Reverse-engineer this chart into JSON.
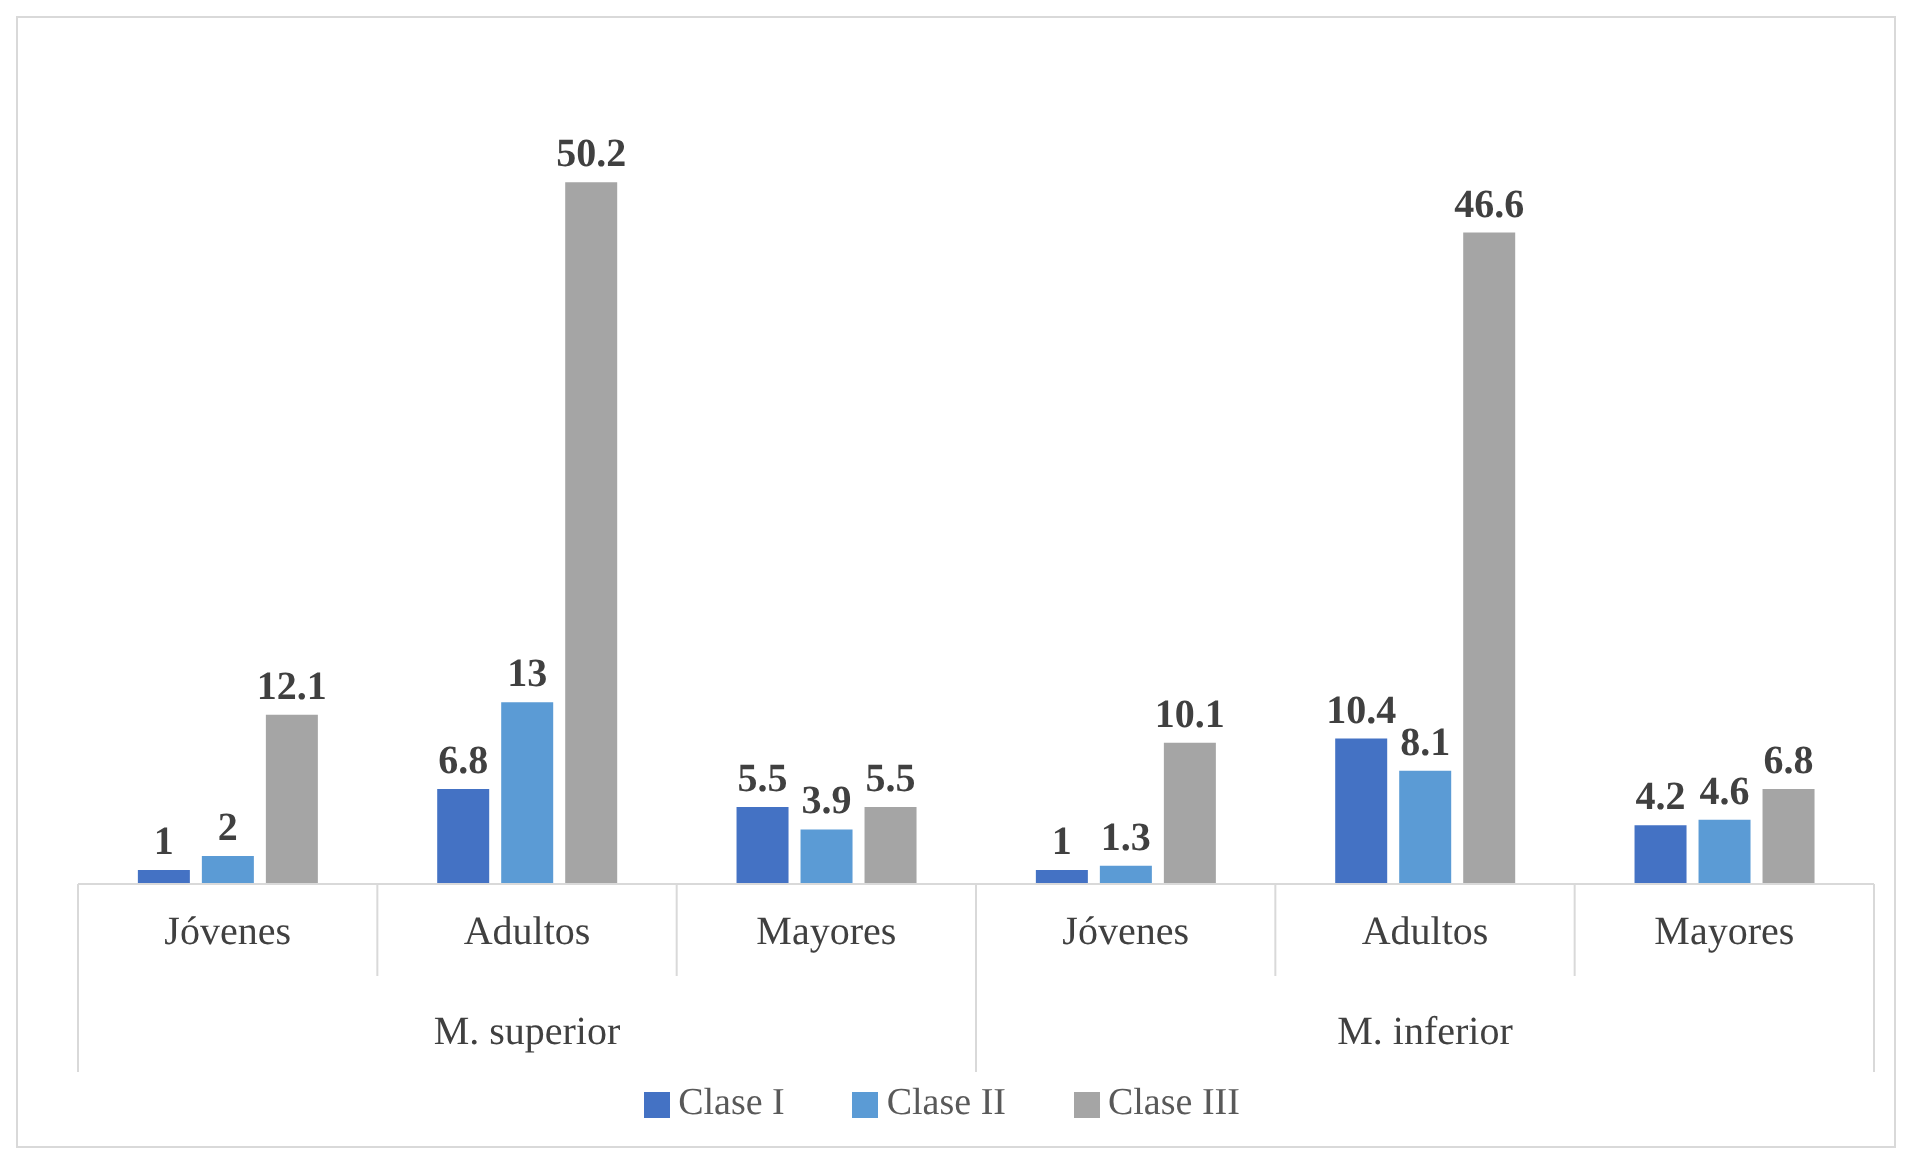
{
  "chart_data": {
    "type": "bar",
    "categories": [
      "Jóvenes",
      "Adultos",
      "Mayores",
      "Jóvenes",
      "Adultos",
      "Mayores"
    ],
    "series": [
      {
        "name": "Clase I",
        "color": "#4472c4",
        "values": [
          1,
          6.8,
          5.5,
          1,
          10.4,
          4.2
        ]
      },
      {
        "name": "Clase II",
        "color": "#5b9bd5",
        "values": [
          2,
          13,
          3.9,
          1.3,
          8.1,
          4.6
        ]
      },
      {
        "name": "Clase III",
        "color": "#a5a5a5",
        "values": [
          12.1,
          50.2,
          5.5,
          10.1,
          46.6,
          6.8
        ]
      }
    ],
    "annotations": [
      "M. superior",
      "M. inferior"
    ],
    "data_labels": true,
    "legend": "bottom",
    "grid": false
  }
}
